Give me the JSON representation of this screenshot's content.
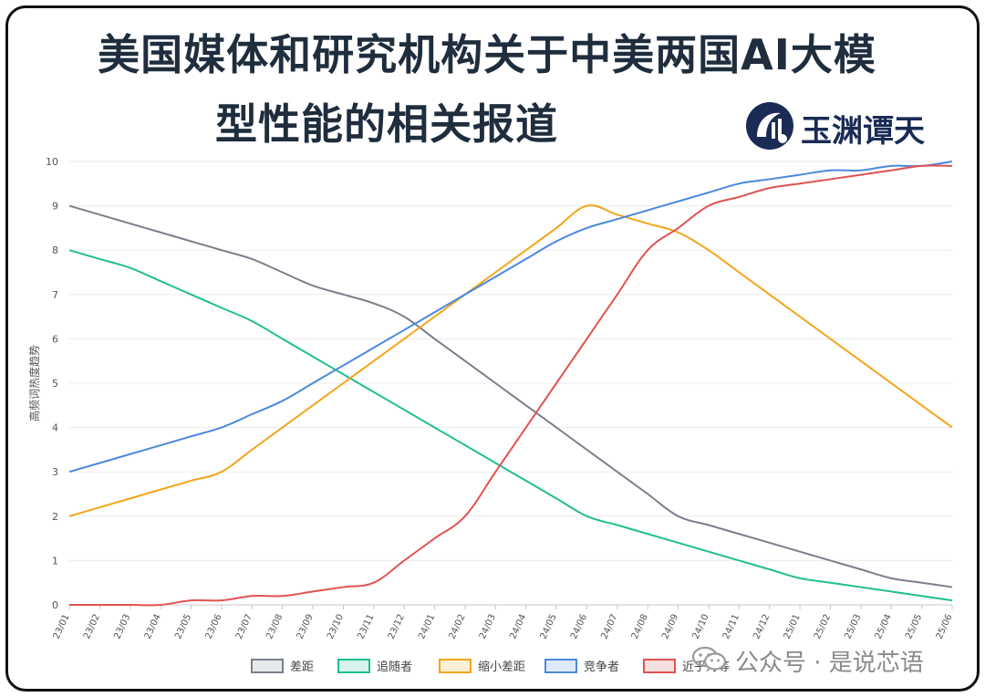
{
  "title": {
    "line1": "美国媒体和研究机构关于中美两国AI大模",
    "line2": "型性能的相关报道"
  },
  "brand": {
    "name": "玉渊谭天",
    "color": "#1a2b55"
  },
  "watermark": {
    "text": "公众号 · 是说芯语",
    "icon": "wechat-icon"
  },
  "chart_data": {
    "type": "line",
    "ylabel": "高频词热度趋势",
    "xlabel": "",
    "ylim": [
      0,
      10
    ],
    "yticks": [
      0,
      1,
      2,
      3,
      4,
      5,
      6,
      7,
      8,
      9,
      10
    ],
    "grid": true,
    "legend_position": "bottom",
    "categories": [
      "23/01",
      "23/02",
      "23/03",
      "23/04",
      "23/05",
      "23/06",
      "23/07",
      "23/08",
      "23/09",
      "23/10",
      "23/11",
      "23/12",
      "24/01",
      "24/02",
      "24/03",
      "24/04",
      "24/05",
      "24/06",
      "24/07",
      "24/08",
      "24/09",
      "24/10",
      "24/11",
      "24/12",
      "25/01",
      "25/02",
      "25/03",
      "25/04",
      "25/05",
      "25/06"
    ],
    "series": [
      {
        "name": "差距",
        "color": "#7a7f8c",
        "values": [
          9.0,
          8.8,
          8.6,
          8.4,
          8.2,
          8.0,
          7.8,
          7.5,
          7.2,
          7.0,
          6.8,
          6.5,
          6.0,
          5.5,
          5.0,
          4.5,
          4.0,
          3.5,
          3.0,
          2.5,
          2.0,
          1.8,
          1.6,
          1.4,
          1.2,
          1.0,
          0.8,
          0.6,
          0.5,
          0.4
        ]
      },
      {
        "name": "追随者",
        "color": "#1fbf8f",
        "values": [
          8.0,
          7.8,
          7.6,
          7.3,
          7.0,
          6.7,
          6.4,
          6.0,
          5.6,
          5.2,
          4.8,
          4.4,
          4.0,
          3.6,
          3.2,
          2.8,
          2.4,
          2.0,
          1.8,
          1.6,
          1.4,
          1.2,
          1.0,
          0.8,
          0.6,
          0.5,
          0.4,
          0.3,
          0.2,
          0.1
        ]
      },
      {
        "name": "缩小差距",
        "color": "#f2a51a",
        "values": [
          2.0,
          2.2,
          2.4,
          2.6,
          2.8,
          3.0,
          3.5,
          4.0,
          4.5,
          5.0,
          5.5,
          6.0,
          6.5,
          7.0,
          7.5,
          8.0,
          8.5,
          9.0,
          8.8,
          8.6,
          8.4,
          8.0,
          7.5,
          7.0,
          6.5,
          6.0,
          5.5,
          5.0,
          4.5,
          4.0
        ]
      },
      {
        "name": "竞争者",
        "color": "#4a89dc",
        "values": [
          3.0,
          3.2,
          3.4,
          3.6,
          3.8,
          4.0,
          4.3,
          4.6,
          5.0,
          5.4,
          5.8,
          6.2,
          6.6,
          7.0,
          7.4,
          7.8,
          8.2,
          8.5,
          8.7,
          8.9,
          9.1,
          9.3,
          9.5,
          9.6,
          9.7,
          9.8,
          9.8,
          9.9,
          9.9,
          10.0
        ]
      },
      {
        "name": "近乎对等",
        "color": "#e05252",
        "values": [
          0,
          0,
          0,
          0,
          0.1,
          0.1,
          0.2,
          0.2,
          0.3,
          0.4,
          0.5,
          1.0,
          1.5,
          2.0,
          3.0,
          4.0,
          5.0,
          6.0,
          7.0,
          8.0,
          8.5,
          9.0,
          9.2,
          9.4,
          9.5,
          9.6,
          9.7,
          9.8,
          9.9,
          9.9
        ]
      }
    ]
  }
}
